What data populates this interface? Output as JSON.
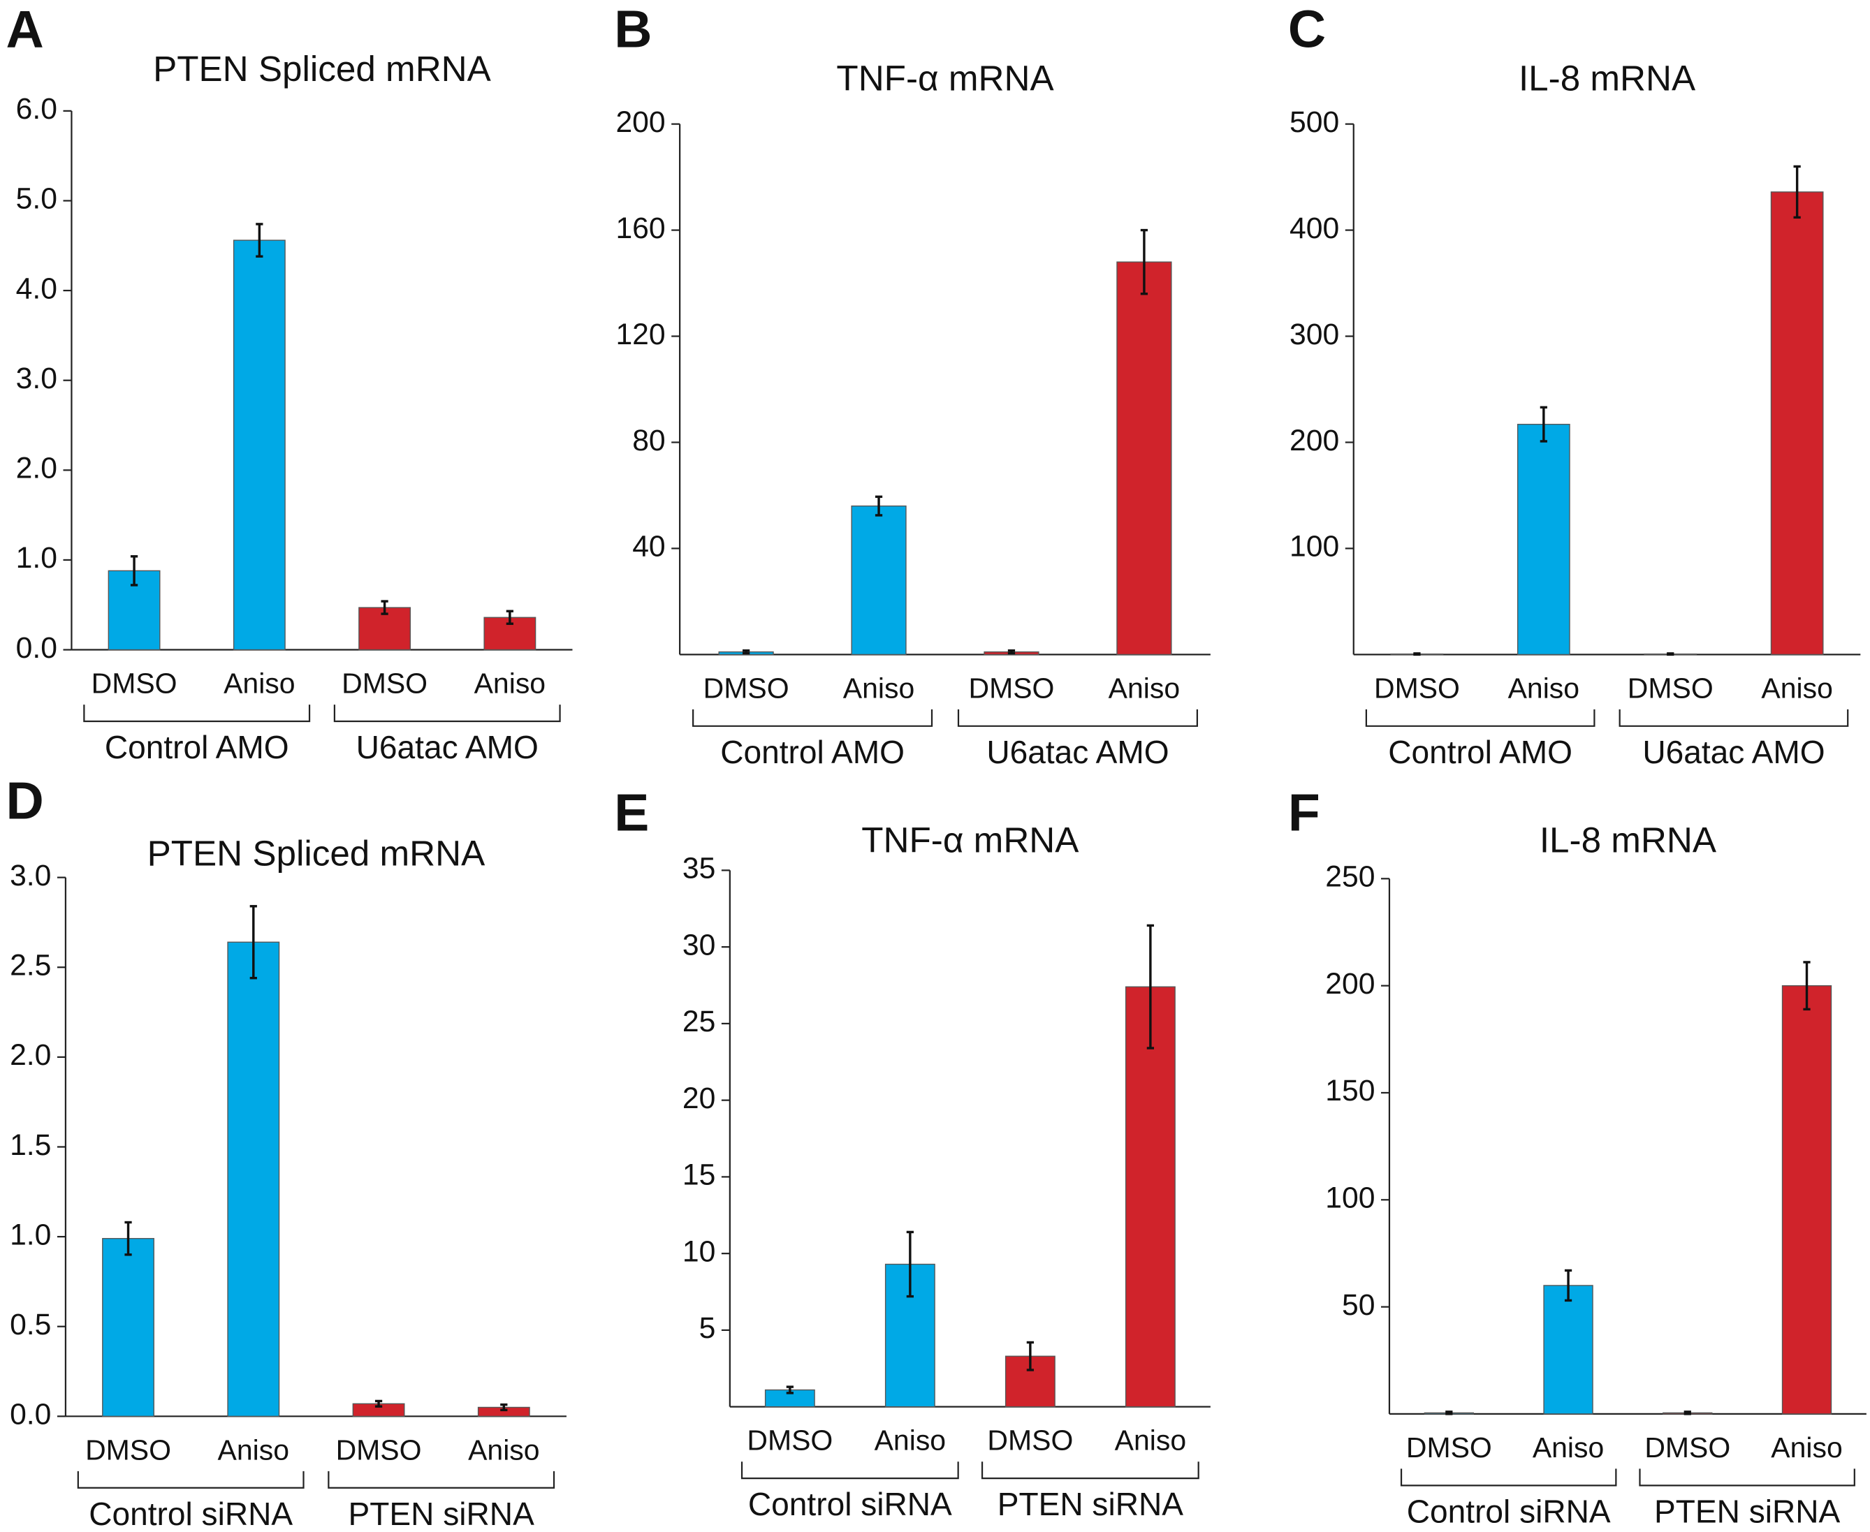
{
  "chart_data": [
    {
      "type": "bar",
      "panel": "A",
      "title": "PTEN Spliced mRNA",
      "categories": [
        "DMSO",
        "Aniso",
        "DMSO",
        "Aniso"
      ],
      "groups": [
        "Control AMO",
        "U6atac AMO"
      ],
      "values": [
        0.88,
        4.56,
        0.47,
        0.36
      ],
      "errors": [
        0.16,
        0.18,
        0.07,
        0.07
      ],
      "colors": [
        "#00a9e6",
        "#00a9e6",
        "#d0232b",
        "#d0232b"
      ],
      "ylim": [
        0,
        6
      ],
      "yticks": [
        {
          "value": 0,
          "label": "0.0"
        },
        {
          "value": 1,
          "label": "1.0"
        },
        {
          "value": 2,
          "label": "2.0"
        },
        {
          "value": 3,
          "label": "3.0"
        },
        {
          "value": 4,
          "label": "4.0"
        },
        {
          "value": 5,
          "label": "5.0"
        },
        {
          "value": 6,
          "label": "6.0"
        }
      ]
    },
    {
      "type": "bar",
      "panel": "B",
      "title": "TNF-α mRNA",
      "categories": [
        "DMSO",
        "Aniso",
        "DMSO",
        "Aniso"
      ],
      "groups": [
        "Control AMO",
        "U6atac AMO"
      ],
      "values": [
        1,
        56,
        1,
        148
      ],
      "errors": [
        0.5,
        3.5,
        0.5,
        12
      ],
      "colors": [
        "#00a9e6",
        "#00a9e6",
        "#d0232b",
        "#d0232b"
      ],
      "ylim": [
        0,
        200
      ],
      "yticks": [
        40,
        80,
        120,
        160,
        200
      ]
    },
    {
      "type": "bar",
      "panel": "C",
      "title": "IL-8 mRNA",
      "categories": [
        "DMSO",
        "Aniso",
        "DMSO",
        "Aniso"
      ],
      "groups": [
        "Control AMO",
        "U6atac AMO"
      ],
      "values": [
        0.5,
        217,
        0.5,
        436
      ],
      "errors": [
        0.5,
        16,
        0.5,
        24
      ],
      "colors": [
        "#00a9e6",
        "#00a9e6",
        "#d0232b",
        "#d0232b"
      ],
      "ylim": [
        0,
        500
      ],
      "yticks": [
        100,
        200,
        300,
        400,
        500
      ]
    },
    {
      "type": "bar",
      "panel": "D",
      "title": "PTEN Spliced mRNA",
      "categories": [
        "DMSO",
        "Aniso",
        "DMSO",
        "Aniso"
      ],
      "groups": [
        "Control siRNA",
        "PTEN siRNA"
      ],
      "values": [
        0.99,
        2.64,
        0.07,
        0.05
      ],
      "errors": [
        0.09,
        0.2,
        0.015,
        0.015
      ],
      "colors": [
        "#00a9e6",
        "#00a9e6",
        "#d0232b",
        "#d0232b"
      ],
      "ylim": [
        0,
        3
      ],
      "yticks": [
        {
          "value": 0,
          "label": "0.0"
        },
        {
          "value": 0.5,
          "label": "0.5"
        },
        {
          "value": 1,
          "label": "1.0"
        },
        {
          "value": 1.5,
          "label": "1.5"
        },
        {
          "value": 2,
          "label": "2.0"
        },
        {
          "value": 2.5,
          "label": "2.5"
        },
        {
          "value": 3,
          "label": "3.0"
        }
      ]
    },
    {
      "type": "bar",
      "panel": "E",
      "title": "TNF-α mRNA",
      "categories": [
        "DMSO",
        "Aniso",
        "DMSO",
        "Aniso"
      ],
      "groups": [
        "Control siRNA",
        "PTEN siRNA"
      ],
      "values": [
        1.1,
        9.3,
        3.3,
        27.4
      ],
      "errors": [
        0.2,
        2.1,
        0.9,
        4
      ],
      "colors": [
        "#00a9e6",
        "#00a9e6",
        "#d0232b",
        "#d0232b"
      ],
      "ylim": [
        0,
        35
      ],
      "yticks": [
        5,
        10,
        15,
        20,
        25,
        30,
        35
      ]
    },
    {
      "type": "bar",
      "panel": "F",
      "title": "IL-8 mRNA",
      "categories": [
        "DMSO",
        "Aniso",
        "DMSO",
        "Aniso"
      ],
      "groups": [
        "Control siRNA",
        "PTEN siRNA"
      ],
      "values": [
        0.5,
        60,
        0.5,
        200
      ],
      "errors": [
        0.5,
        7,
        0.5,
        11
      ],
      "colors": [
        "#00a9e6",
        "#00a9e6",
        "#d0232b",
        "#d0232b"
      ],
      "ylim": [
        0,
        250
      ],
      "yticks": [
        50,
        100,
        150,
        200,
        250
      ]
    }
  ]
}
